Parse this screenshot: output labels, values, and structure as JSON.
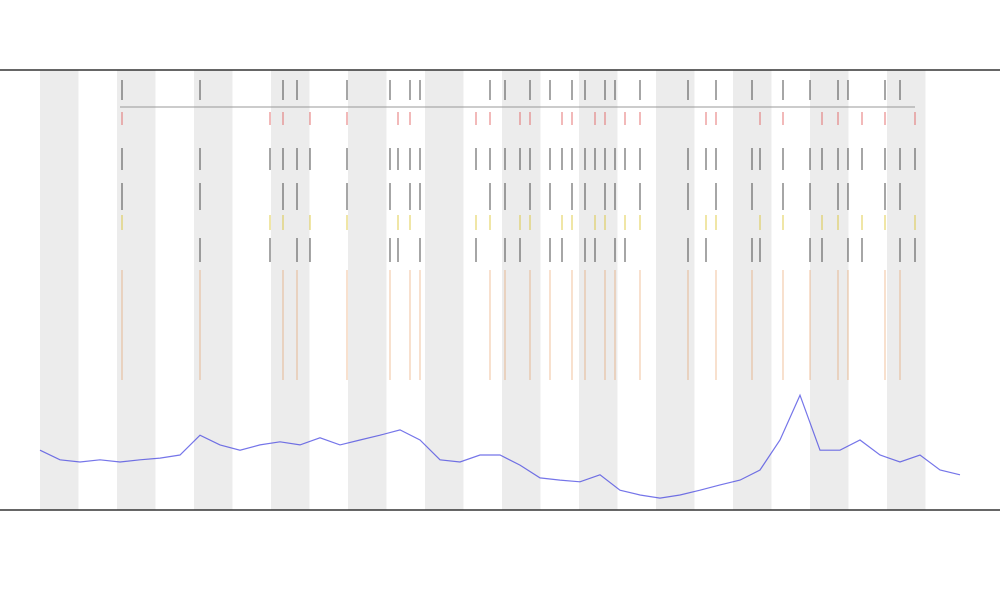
{
  "chart_data": {
    "type": "line",
    "xlim": [
      40,
      960
    ],
    "ylim": [
      0,
      100
    ],
    "x": [
      40,
      60,
      80,
      100,
      120,
      140,
      160,
      180,
      200,
      220,
      240,
      260,
      280,
      300,
      320,
      340,
      360,
      380,
      400,
      420,
      440,
      460,
      480,
      500,
      520,
      540,
      560,
      580,
      600,
      620,
      640,
      660,
      680,
      700,
      720,
      740,
      760,
      780,
      800,
      820,
      840,
      860,
      880,
      900,
      920,
      940,
      960
    ],
    "series": [
      {
        "color": "#3a3ae0",
        "values": [
          13.6,
          11.4,
          10.9,
          11.4,
          10.9,
          11.4,
          11.8,
          12.5,
          17,
          14.8,
          13.6,
          14.8,
          15.5,
          14.8,
          16.4,
          14.8,
          15.9,
          17,
          18.2,
          15.9,
          11.4,
          10.9,
          12.5,
          12.5,
          10.2,
          7.3,
          6.8,
          6.4,
          8,
          4.5,
          3.4,
          2.7,
          3.4,
          4.5,
          5.7,
          6.8,
          9.1,
          15.9,
          26.1,
          13.6,
          13.6,
          15.9,
          12.5,
          10.9,
          12.5,
          9.1,
          8
        ]
      }
    ],
    "events": [
      122,
      200,
      270,
      283,
      297,
      310,
      347,
      390,
      398,
      410,
      420,
      476,
      490,
      505,
      520,
      530,
      550,
      562,
      572,
      585,
      595,
      605,
      615,
      625,
      640,
      688,
      706,
      716,
      752,
      760,
      783,
      810,
      822,
      838,
      848,
      862,
      885,
      900,
      915
    ],
    "event_colors": [
      "#222222",
      "#e05050",
      "#d8c020",
      "#e08030"
    ]
  }
}
